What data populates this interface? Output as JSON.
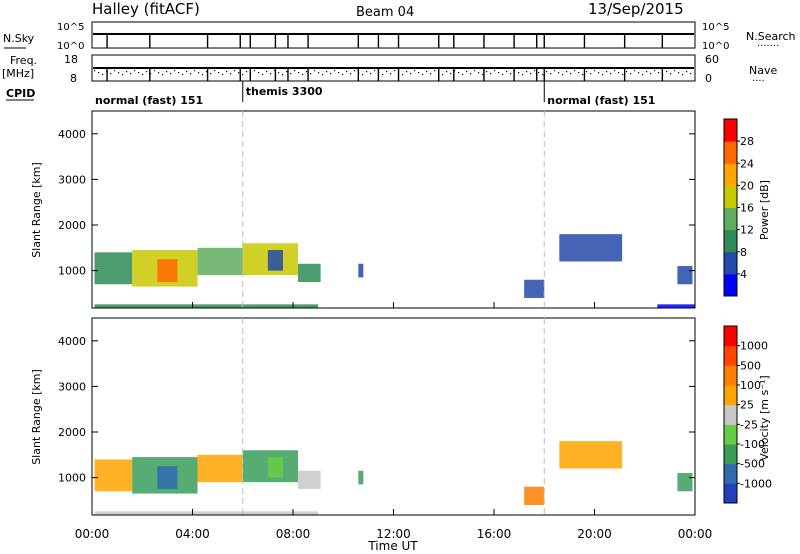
{
  "header": {
    "station": "Halley (fitACF)",
    "beam": "Beam 04",
    "date": "13/Sep/2015"
  },
  "panels": {
    "nsky": {
      "left_label": "N.Sky",
      "right_label": "N.Search",
      "left_top": "10^5",
      "left_bottom": "10^0",
      "right_top": "10^5",
      "right_bottom": "10^0",
      "right_dots": "·······"
    },
    "freq": {
      "left_label_1": "Freq.",
      "left_label_2": "[MHz]",
      "left_top": "18",
      "left_bottom": "8",
      "right_top": "60",
      "right_bottom": "0",
      "right_label": "Nave",
      "right_dots": "····"
    },
    "cpid": {
      "label": "CPID",
      "modes": [
        {
          "name": "normal (fast) 151",
          "start_hour": 0
        },
        {
          "name": "themis 3300",
          "start_hour": 6
        },
        {
          "name": "normal (fast) 151",
          "start_hour": 18
        }
      ]
    }
  },
  "chart_data": [
    {
      "type": "heatmap",
      "title": "Power",
      "ylabel": "Slant Range [km]",
      "xlabel": "",
      "xlim_hours": [
        0,
        24
      ],
      "ylim": [
        180,
        4500
      ],
      "yticks": [
        "1000",
        "2000",
        "3000",
        "4000"
      ],
      "colorbar": {
        "label": "Power [dB]",
        "ticks": [
          "4",
          "8",
          "12",
          "16",
          "20",
          "24",
          "28"
        ],
        "colors": [
          "#0000ff",
          "#234aa8",
          "#2e8b57",
          "#5fae5f",
          "#c8c800",
          "#ffa500",
          "#ff6a00",
          "#ff0000"
        ]
      },
      "regions": [
        {
          "h0": 0.1,
          "h1": 1.6,
          "r0": 700,
          "r1": 1400,
          "color": "#2e8b57"
        },
        {
          "h0": 1.6,
          "h1": 4.2,
          "r0": 650,
          "r1": 1450,
          "color": "#c8c800"
        },
        {
          "h0": 2.6,
          "h1": 3.4,
          "r0": 750,
          "r1": 1250,
          "color": "#ff6a00"
        },
        {
          "h0": 4.2,
          "h1": 6.0,
          "r0": 900,
          "r1": 1500,
          "color": "#5fae5f"
        },
        {
          "h0": 6.0,
          "h1": 8.2,
          "r0": 900,
          "r1": 1600,
          "color": "#c8c800"
        },
        {
          "h0": 7.0,
          "h1": 7.6,
          "r0": 1000,
          "r1": 1450,
          "color": "#234aa8"
        },
        {
          "h0": 8.2,
          "h1": 9.1,
          "r0": 750,
          "r1": 1150,
          "color": "#2e8b57"
        },
        {
          "h0": 10.6,
          "h1": 10.8,
          "r0": 850,
          "r1": 1150,
          "color": "#234aa8"
        },
        {
          "h0": 17.2,
          "h1": 18.0,
          "r0": 400,
          "r1": 800,
          "color": "#234aa8"
        },
        {
          "h0": 18.6,
          "h1": 21.1,
          "r0": 1200,
          "r1": 1800,
          "color": "#234aa8"
        },
        {
          "h0": 23.3,
          "h1": 23.9,
          "r0": 700,
          "r1": 1100,
          "color": "#234aa8"
        },
        {
          "h0": 22.5,
          "h1": 24.0,
          "r0": 190,
          "r1": 260,
          "color": "#0000ff"
        },
        {
          "h0": 0.1,
          "h1": 9.0,
          "r0": 190,
          "r1": 260,
          "color": "#2e8b57"
        }
      ]
    },
    {
      "type": "heatmap",
      "title": "Velocity",
      "ylabel": "Slant Range [km]",
      "xlabel": "Time UT",
      "xlim_hours": [
        0,
        24
      ],
      "ylim": [
        180,
        4500
      ],
      "yticks": [
        "1000",
        "2000",
        "3000",
        "4000"
      ],
      "xticks": [
        "00:00",
        "04:00",
        "08:00",
        "12:00",
        "16:00",
        "20:00",
        "00:00"
      ],
      "colorbar": {
        "label": "Velocity [m s⁻¹]",
        "ticks": [
          "1000",
          "500",
          "100",
          "25",
          "-25",
          "-100",
          "-500",
          "-1000"
        ],
        "colors": [
          "#2340b8",
          "#2f6ab0",
          "#3a9e5a",
          "#66cc44",
          "#c8c8c8",
          "#ffa500",
          "#ff7f00",
          "#ff4500",
          "#ff0000"
        ]
      },
      "regions": [
        {
          "h0": 0.1,
          "h1": 1.6,
          "r0": 700,
          "r1": 1400,
          "color": "#ffa500"
        },
        {
          "h0": 1.6,
          "h1": 4.2,
          "r0": 650,
          "r1": 1450,
          "color": "#3a9e5a"
        },
        {
          "h0": 2.6,
          "h1": 3.4,
          "r0": 750,
          "r1": 1250,
          "color": "#2f6ab0"
        },
        {
          "h0": 4.2,
          "h1": 6.0,
          "r0": 900,
          "r1": 1500,
          "color": "#ffa500"
        },
        {
          "h0": 6.0,
          "h1": 8.2,
          "r0": 900,
          "r1": 1600,
          "color": "#3a9e5a"
        },
        {
          "h0": 7.0,
          "h1": 7.6,
          "r0": 1000,
          "r1": 1450,
          "color": "#66cc44"
        },
        {
          "h0": 8.2,
          "h1": 9.1,
          "r0": 750,
          "r1": 1150,
          "color": "#c8c8c8"
        },
        {
          "h0": 10.6,
          "h1": 10.8,
          "r0": 850,
          "r1": 1150,
          "color": "#3a9e5a"
        },
        {
          "h0": 17.2,
          "h1": 18.0,
          "r0": 400,
          "r1": 800,
          "color": "#ff7f00"
        },
        {
          "h0": 18.6,
          "h1": 21.1,
          "r0": 1200,
          "r1": 1800,
          "color": "#ffa500"
        },
        {
          "h0": 23.3,
          "h1": 23.9,
          "r0": 700,
          "r1": 1100,
          "color": "#3a9e5a"
        },
        {
          "h0": 0.1,
          "h1": 9.0,
          "r0": 190,
          "r1": 260,
          "color": "#c8c8c8"
        }
      ]
    }
  ]
}
